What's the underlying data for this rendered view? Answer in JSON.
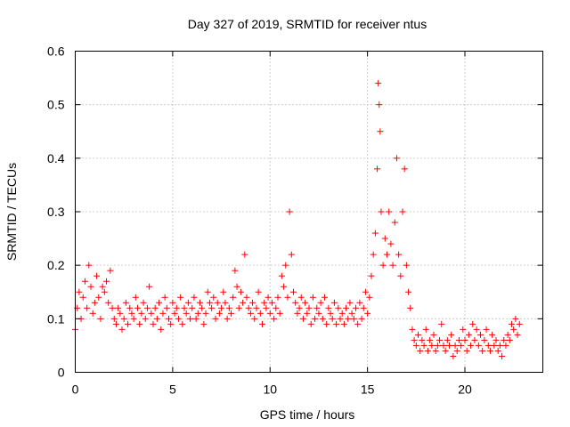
{
  "chart_data": {
    "type": "scatter",
    "title": "Day 327 of 2019, SRMTID for receiver ntus",
    "xlabel": "GPS time / hours",
    "ylabel": "SRMTID / TECUs",
    "xlim": [
      0,
      24
    ],
    "ylim": [
      0,
      0.6
    ],
    "xticks": [
      0,
      5,
      10,
      15,
      20
    ],
    "xtick_labels": [
      "0",
      "5",
      "10",
      "15",
      "20"
    ],
    "yticks": [
      0,
      0.1,
      0.2,
      0.3,
      0.4,
      0.5,
      0.6
    ],
    "ytick_labels": [
      "0",
      "0.1",
      "0.2",
      "0.3",
      "0.4",
      "0.5",
      "0.6"
    ],
    "grid": true,
    "marker": "+",
    "color": "#ff0000",
    "series": [
      {
        "name": "ntus",
        "x": [
          0.0,
          0.1,
          0.2,
          0.3,
          0.4,
          0.5,
          0.6,
          0.7,
          0.8,
          0.9,
          1.0,
          1.1,
          1.2,
          1.3,
          1.4,
          1.5,
          1.6,
          1.7,
          1.8,
          1.9,
          2.0,
          2.1,
          2.2,
          2.3,
          2.4,
          2.5,
          2.6,
          2.7,
          2.8,
          2.9,
          3.0,
          3.1,
          3.2,
          3.3,
          3.4,
          3.5,
          3.6,
          3.7,
          3.8,
          3.9,
          4.0,
          4.1,
          4.2,
          4.3,
          4.4,
          4.5,
          4.6,
          4.7,
          4.8,
          4.9,
          5.0,
          5.1,
          5.2,
          5.3,
          5.4,
          5.5,
          5.6,
          5.7,
          5.8,
          5.9,
          6.0,
          6.1,
          6.2,
          6.3,
          6.4,
          6.5,
          6.6,
          6.7,
          6.8,
          6.9,
          7.0,
          7.1,
          7.2,
          7.3,
          7.4,
          7.5,
          7.6,
          7.7,
          7.8,
          7.9,
          8.0,
          8.1,
          8.2,
          8.3,
          8.4,
          8.5,
          8.6,
          8.7,
          8.8,
          8.9,
          9.0,
          9.1,
          9.2,
          9.3,
          9.4,
          9.5,
          9.6,
          9.7,
          9.8,
          9.9,
          10.0,
          10.1,
          10.2,
          10.3,
          10.4,
          10.5,
          10.6,
          10.7,
          10.8,
          10.9,
          11.0,
          11.1,
          11.2,
          11.3,
          11.4,
          11.5,
          11.6,
          11.7,
          11.8,
          11.9,
          12.0,
          12.1,
          12.2,
          12.3,
          12.4,
          12.5,
          12.6,
          12.7,
          12.8,
          12.9,
          13.0,
          13.1,
          13.2,
          13.3,
          13.4,
          13.5,
          13.6,
          13.7,
          13.8,
          13.9,
          14.0,
          14.1,
          14.2,
          14.3,
          14.4,
          14.5,
          14.6,
          14.7,
          14.8,
          14.9,
          15.0,
          15.1,
          15.2,
          15.3,
          15.4,
          15.5,
          15.55,
          15.6,
          15.65,
          15.7,
          15.8,
          15.9,
          16.0,
          16.1,
          16.2,
          16.3,
          16.4,
          16.5,
          16.6,
          16.7,
          16.8,
          16.9,
          17.0,
          17.1,
          17.2,
          17.3,
          17.4,
          17.5,
          17.6,
          17.7,
          17.8,
          17.9,
          18.0,
          18.1,
          18.2,
          18.3,
          18.4,
          18.5,
          18.6,
          18.7,
          18.8,
          18.9,
          19.0,
          19.1,
          19.2,
          19.3,
          19.4,
          19.5,
          19.6,
          19.7,
          19.8,
          19.9,
          20.0,
          20.1,
          20.2,
          20.3,
          20.4,
          20.5,
          20.6,
          20.7,
          20.8,
          20.9,
          21.0,
          21.1,
          21.2,
          21.3,
          21.4,
          21.5,
          21.6,
          21.7,
          21.8,
          21.9,
          22.0,
          22.1,
          22.2,
          22.3,
          22.4,
          22.5,
          22.6,
          22.7,
          22.8
        ],
        "y": [
          0.08,
          0.12,
          0.15,
          0.1,
          0.14,
          0.17,
          0.12,
          0.2,
          0.16,
          0.11,
          0.13,
          0.18,
          0.14,
          0.1,
          0.16,
          0.15,
          0.17,
          0.13,
          0.19,
          0.12,
          0.1,
          0.09,
          0.12,
          0.11,
          0.08,
          0.1,
          0.13,
          0.09,
          0.12,
          0.11,
          0.1,
          0.14,
          0.12,
          0.09,
          0.11,
          0.13,
          0.1,
          0.12,
          0.16,
          0.11,
          0.09,
          0.12,
          0.1,
          0.13,
          0.08,
          0.11,
          0.14,
          0.12,
          0.1,
          0.09,
          0.13,
          0.11,
          0.12,
          0.1,
          0.14,
          0.09,
          0.12,
          0.11,
          0.13,
          0.1,
          0.12,
          0.14,
          0.1,
          0.11,
          0.13,
          0.12,
          0.09,
          0.11,
          0.15,
          0.13,
          0.12,
          0.14,
          0.1,
          0.13,
          0.11,
          0.12,
          0.15,
          0.13,
          0.1,
          0.12,
          0.11,
          0.14,
          0.19,
          0.16,
          0.12,
          0.15,
          0.13,
          0.22,
          0.14,
          0.12,
          0.11,
          0.13,
          0.1,
          0.12,
          0.15,
          0.11,
          0.09,
          0.13,
          0.12,
          0.14,
          0.11,
          0.13,
          0.1,
          0.12,
          0.14,
          0.11,
          0.18,
          0.16,
          0.2,
          0.14,
          0.3,
          0.22,
          0.15,
          0.13,
          0.11,
          0.12,
          0.14,
          0.1,
          0.13,
          0.11,
          0.12,
          0.09,
          0.14,
          0.1,
          0.12,
          0.11,
          0.13,
          0.1,
          0.14,
          0.09,
          0.12,
          0.11,
          0.1,
          0.13,
          0.09,
          0.12,
          0.1,
          0.11,
          0.09,
          0.12,
          0.1,
          0.13,
          0.11,
          0.1,
          0.12,
          0.09,
          0.13,
          0.1,
          0.12,
          0.15,
          0.11,
          0.14,
          0.18,
          0.22,
          0.26,
          0.38,
          0.54,
          0.5,
          0.45,
          0.3,
          0.2,
          0.25,
          0.22,
          0.3,
          0.24,
          0.2,
          0.28,
          0.4,
          0.22,
          0.18,
          0.3,
          0.38,
          0.2,
          0.15,
          0.12,
          0.08,
          0.06,
          0.05,
          0.07,
          0.04,
          0.06,
          0.05,
          0.08,
          0.04,
          0.06,
          0.05,
          0.07,
          0.04,
          0.05,
          0.06,
          0.09,
          0.05,
          0.04,
          0.06,
          0.05,
          0.07,
          0.03,
          0.05,
          0.04,
          0.06,
          0.05,
          0.08,
          0.06,
          0.04,
          0.07,
          0.05,
          0.09,
          0.06,
          0.08,
          0.05,
          0.07,
          0.04,
          0.06,
          0.08,
          0.05,
          0.04,
          0.07,
          0.05,
          0.06,
          0.04,
          0.05,
          0.03,
          0.06,
          0.05,
          0.07,
          0.06,
          0.09,
          0.08,
          0.1,
          0.07,
          0.09
        ]
      }
    ]
  }
}
